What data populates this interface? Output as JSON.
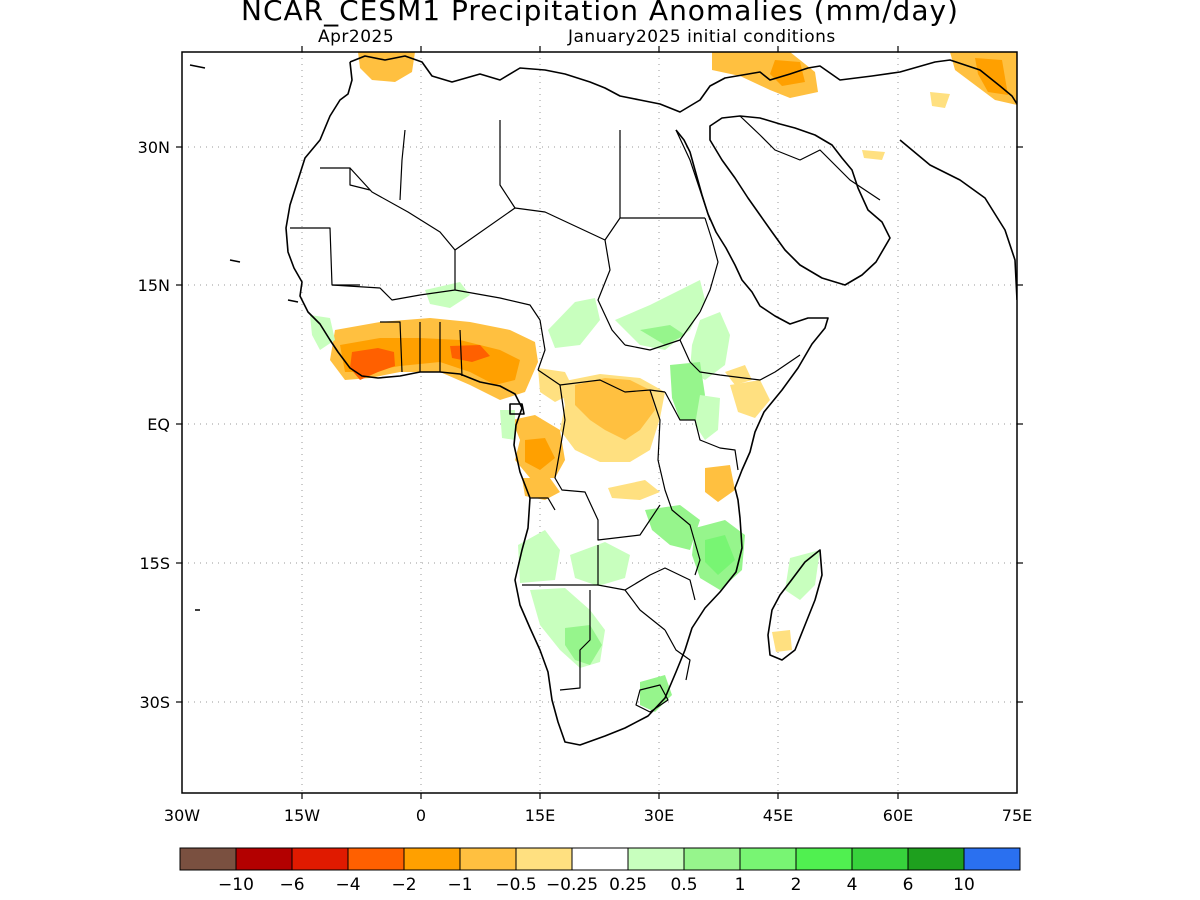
{
  "title": "NCAR_CESM1 Precipitation Anomalies (mm/day)",
  "subtitle_left": "Apr2025",
  "subtitle_right": "January2025 initial conditions",
  "lat_ticks": [
    "30N",
    "15N",
    "EQ",
    "15S",
    "30S"
  ],
  "lon_ticks": [
    "30W",
    "15W",
    "0",
    "15E",
    "30E",
    "45E",
    "60E",
    "75E"
  ],
  "colorbar": {
    "colors": [
      "#7a5040",
      "#b30000",
      "#e01a00",
      "#ff6000",
      "#ffa000",
      "#ffc040",
      "#ffe080",
      "#ffffff",
      "#c8ffbe",
      "#96f58c",
      "#78f573",
      "#50f050",
      "#37d23c",
      "#1ea01e",
      "#2a70f0"
    ],
    "labels": [
      "-10",
      "-6",
      "-4",
      "-2",
      "-1",
      "-0.5",
      "-0.25",
      "0.25",
      "0.5",
      "1",
      "2",
      "4",
      "6",
      "10"
    ]
  },
  "anomaly_regions": [
    {
      "name": "west-africa-coast-dry",
      "color": "#ffa000"
    },
    {
      "name": "guinea-coast-strong-dry",
      "color": "#ff6000"
    },
    {
      "name": "central-africa-dry",
      "color": "#ffe080"
    },
    {
      "name": "gabon-congo-dry",
      "color": "#ffc040"
    },
    {
      "name": "east-africa-wet",
      "color": "#96f58c"
    },
    {
      "name": "south-africa-wet",
      "color": "#c8ffbe"
    },
    {
      "name": "mozambique-wet",
      "color": "#96f58c"
    },
    {
      "name": "mediterranean-dry",
      "color": "#ffc040"
    }
  ]
}
